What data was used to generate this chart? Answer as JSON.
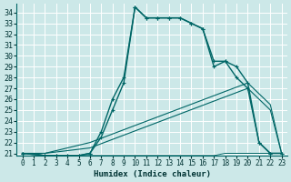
{
  "xlabel": "Humidex (Indice chaleur)",
  "bg_color": "#cce8e8",
  "grid_color": "#ffffff",
  "line_color": "#006666",
  "xlim": [
    -0.5,
    23.5
  ],
  "ylim": [
    20.8,
    34.8
  ],
  "xticks": [
    0,
    1,
    2,
    3,
    4,
    5,
    6,
    7,
    8,
    9,
    10,
    11,
    12,
    13,
    14,
    15,
    16,
    17,
    18,
    19,
    20,
    21,
    22,
    23
  ],
  "yticks": [
    21,
    22,
    23,
    24,
    25,
    26,
    27,
    28,
    29,
    30,
    31,
    32,
    33,
    34
  ],
  "curve1_x": [
    0,
    1,
    2,
    3,
    4,
    5,
    6,
    7,
    8,
    9,
    10,
    11,
    12,
    13,
    14,
    15,
    16,
    17,
    18,
    19,
    20,
    21,
    22,
    23
  ],
  "curve1_y": [
    21,
    21,
    20.8,
    20.8,
    20.8,
    20.8,
    20.8,
    20.8,
    20.8,
    20.8,
    20.8,
    20.8,
    20.8,
    20.8,
    20.8,
    20.8,
    20.8,
    20.8,
    21,
    21,
    21,
    21,
    21,
    21
  ],
  "curve2_x": [
    0,
    2,
    3,
    4,
    5,
    6,
    7,
    8,
    9,
    10,
    11,
    12,
    13,
    14,
    15,
    16,
    17,
    18,
    19,
    20,
    21,
    22,
    23
  ],
  "curve2_y": [
    21,
    20.8,
    20.8,
    20.8,
    20.8,
    21.0,
    22.5,
    25.0,
    27.5,
    34.5,
    33.5,
    33.5,
    33.5,
    33.5,
    33.0,
    32.5,
    29.5,
    29.5,
    29.0,
    27.5,
    22.0,
    21.0,
    21.0
  ],
  "curve3_x": [
    0,
    2,
    3,
    4,
    5,
    6,
    7,
    8,
    9,
    10,
    11,
    12,
    13,
    14,
    15,
    16,
    17,
    18,
    19,
    20,
    21,
    22,
    23
  ],
  "curve3_y": [
    21,
    20.8,
    20.8,
    20.8,
    20.8,
    21.0,
    23.0,
    26.0,
    28.0,
    34.5,
    33.5,
    33.5,
    33.5,
    33.5,
    33.0,
    32.5,
    29.0,
    29.5,
    28.0,
    27.0,
    22.0,
    21.0,
    21.0
  ],
  "diag1_x": [
    0,
    2,
    6,
    20,
    22,
    23
  ],
  "diag1_y": [
    21,
    21,
    22.0,
    27.5,
    25.5,
    21
  ],
  "diag2_x": [
    0,
    2,
    6,
    20,
    22,
    23
  ],
  "diag2_y": [
    21,
    21,
    21.5,
    27.0,
    25.0,
    21
  ]
}
